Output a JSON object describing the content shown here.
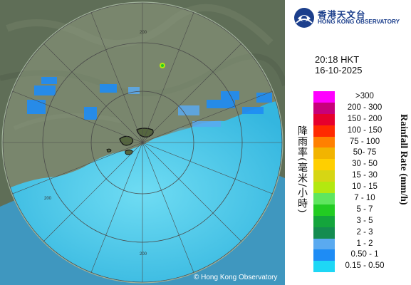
{
  "header": {
    "logo_zh": "香港天文台",
    "logo_en": "HONG KONG OBSERVATORY"
  },
  "timestamp": {
    "time": "20:18 HKT",
    "date": "16-10-2025"
  },
  "legend": {
    "title_zh": "降雨率(毫米/小時)",
    "title_en": "Rainfall Rate (mm/h)",
    "items": [
      {
        "label": ">300",
        "color": "#ff00ff"
      },
      {
        "label": "200 - 300",
        "color": "#c8007a"
      },
      {
        "label": "150 - 200",
        "color": "#e6002d"
      },
      {
        "label": "100 - 150",
        "color": "#ff2a00"
      },
      {
        "label": "75 - 100",
        "color": "#ff8000"
      },
      {
        "label": "50- 75",
        "color": "#f2b400"
      },
      {
        "label": "30 - 50",
        "color": "#ffcf00"
      },
      {
        "label": "15 - 30",
        "color": "#d6d614"
      },
      {
        "label": "10 - 15",
        "color": "#b3e80f"
      },
      {
        "label": "7 - 10",
        "color": "#5ee65e"
      },
      {
        "label": "5 - 7",
        "color": "#22cc22"
      },
      {
        "label": "3 - 5",
        "color": "#14a53c"
      },
      {
        "label": "2 - 3",
        "color": "#148c50"
      },
      {
        "label": "1 - 2",
        "color": "#5aaaf0"
      },
      {
        "label": "0.50 - 1",
        "color": "#1e8cf5"
      },
      {
        "label": "0.15 - 0.50",
        "color": "#1ed7f5"
      }
    ]
  },
  "map": {
    "range_rings": [
      {
        "label": "200"
      },
      {
        "label": "200"
      },
      {
        "label": "200"
      }
    ],
    "sea_color": "#49c8e8",
    "land_color": "#5f6e57"
  },
  "copyright": "© Hong Kong Observatory"
}
